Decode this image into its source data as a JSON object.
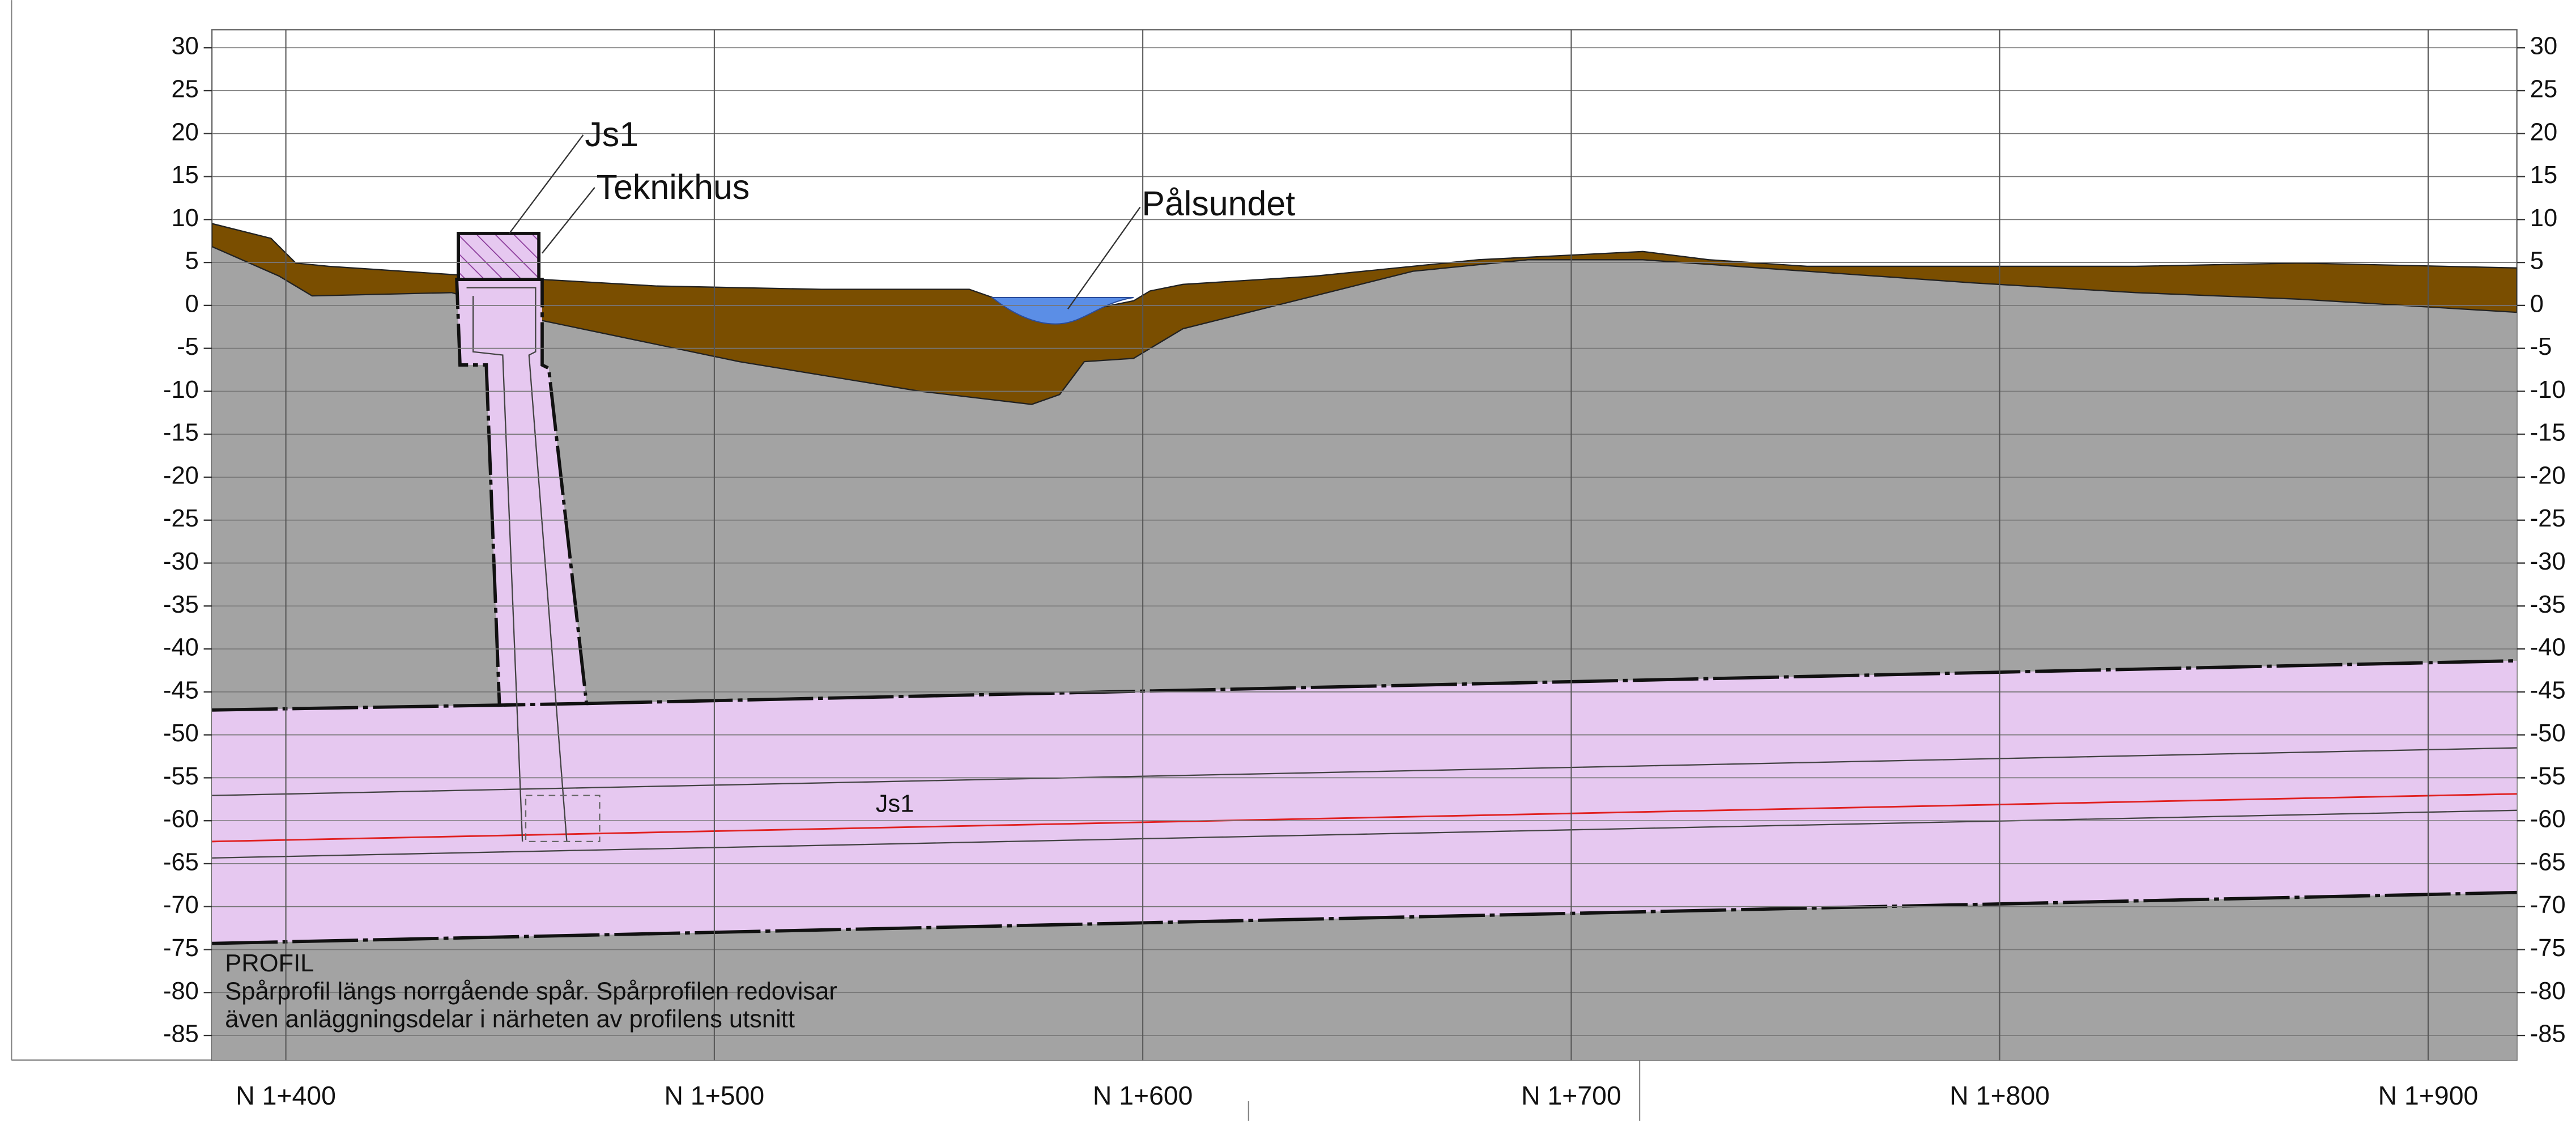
{
  "axes": {
    "yticks": [
      30,
      25,
      20,
      15,
      10,
      5,
      0,
      -5,
      -10,
      -15,
      -20,
      -25,
      -30,
      -35,
      -40,
      -45,
      -50,
      -55,
      -60,
      -65,
      -70,
      -75,
      -80,
      -85
    ],
    "xticks": [
      {
        "value": 1400,
        "label": "N 1+400"
      },
      {
        "value": 1500,
        "label": "N 1+500"
      },
      {
        "value": 1600,
        "label": "N 1+600"
      },
      {
        "value": 1700,
        "label": "N 1+700"
      },
      {
        "value": 1800,
        "label": "N 1+800"
      },
      {
        "value": 1900,
        "label": "N 1+900"
      }
    ]
  },
  "annotations": {
    "js1_top": "Js1",
    "teknikhus": "Teknikhus",
    "palsundet": "Pålsundet",
    "js1_tunnel": "Js1"
  },
  "note": {
    "title": "PROFIL",
    "line1": "Spårprofil längs norrgående spår. Spårprofilen redovisar",
    "line2": "även anläggningsdelar i närheten av profilens utsnitt"
  }
}
